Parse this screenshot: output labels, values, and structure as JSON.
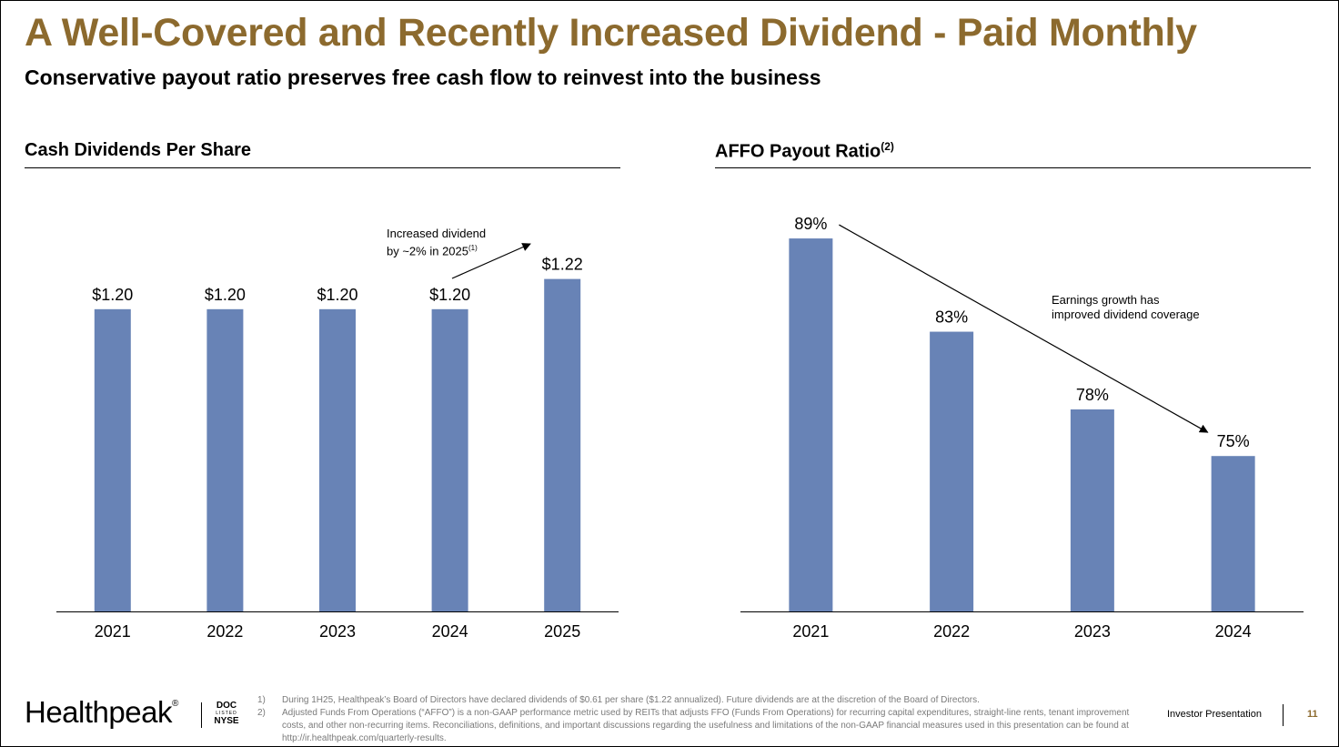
{
  "header": {
    "title": "A Well-Covered and Recently Increased Dividend - Paid Monthly",
    "subtitle": "Conservative payout ratio preserves free cash flow to reinvest into the business"
  },
  "colors": {
    "title": "#8C6A2E",
    "bar": "#6883B6",
    "text": "#000000",
    "footnote": "#7A7A7A"
  },
  "chart_data": [
    {
      "type": "bar",
      "title": "Cash Dividends Per Share",
      "categories": [
        "2021",
        "2022",
        "2023",
        "2024",
        "2025"
      ],
      "values": [
        1.2,
        1.2,
        1.2,
        1.2,
        1.22
      ],
      "value_labels": [
        "$1.20",
        "$1.20",
        "$1.20",
        "$1.20",
        "$1.22"
      ],
      "ylim": [
        1.0,
        1.23
      ],
      "xlabel": "",
      "ylabel": "",
      "grid": false,
      "annotation": {
        "line1": "Increased dividend",
        "line2": "by ~2% in 2025",
        "ref": "(1)"
      }
    },
    {
      "type": "bar",
      "title": "AFFO Payout Ratio",
      "title_ref": "(2)",
      "categories": [
        "2021",
        "2022",
        "2023",
        "2024"
      ],
      "values": [
        89,
        83,
        78,
        75
      ],
      "value_labels": [
        "89%",
        "83%",
        "78%",
        "75%"
      ],
      "ylim": [
        65,
        90
      ],
      "xlabel": "",
      "ylabel": "",
      "grid": false,
      "annotation": {
        "line1": "Earnings growth has",
        "line2": "improved dividend coverage"
      }
    }
  ],
  "footer": {
    "logo": "Healthpeak",
    "logo_mark": "®",
    "ticker": {
      "top": "DOC",
      "middle": "LISTED",
      "bottom": "NYSE"
    },
    "footnotes": [
      {
        "num": "1)",
        "text": "During 1H25, Healthpeak’s Board of Directors have declared dividends of $0.61 per share ($1.22 annualized). Future dividends are at the discretion of the Board of Directors."
      },
      {
        "num": "2)",
        "text": "Adjusted Funds From Operations (“AFFO”) is a non-GAAP performance metric used by REITs that adjusts FFO (Funds From Operations) for recurring capital expenditures, straight-line rents, tenant improvement costs, and other non-recurring items. Reconciliations, definitions, and important discussions regarding the usefulness and limitations of the non-GAAP financial measures used in this presentation can be found at http://ir.healthpeak.com/quarterly-results."
      }
    ],
    "label": "Investor Presentation",
    "page_number": "11"
  }
}
